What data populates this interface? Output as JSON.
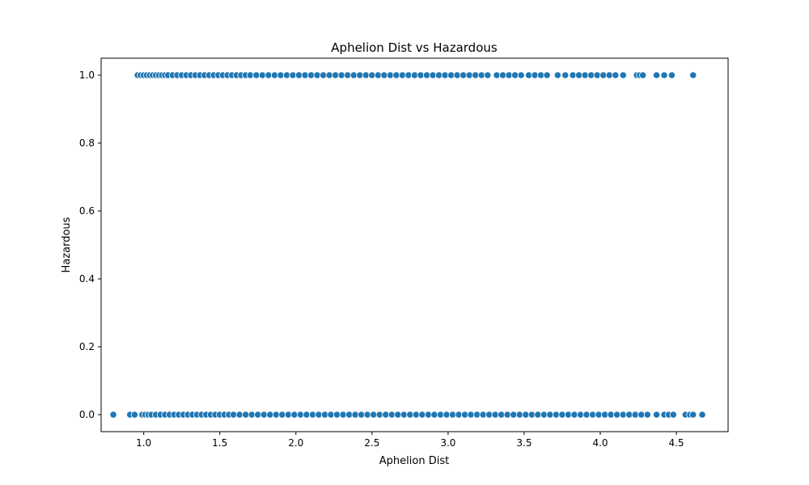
{
  "chart_data": {
    "type": "scatter",
    "title": "Aphelion Dist vs Hazardous",
    "xlabel": "Aphelion Dist",
    "ylabel": "Hazardous",
    "xlim": [
      0.72,
      4.84
    ],
    "ylim": [
      -0.05,
      1.05
    ],
    "xticks": [
      {
        "value": 1.0,
        "label": "1.0"
      },
      {
        "value": 1.5,
        "label": "1.5"
      },
      {
        "value": 2.0,
        "label": "2.0"
      },
      {
        "value": 2.5,
        "label": "2.5"
      },
      {
        "value": 3.0,
        "label": "3.0"
      },
      {
        "value": 3.5,
        "label": "3.5"
      },
      {
        "value": 4.0,
        "label": "4.0"
      },
      {
        "value": 4.5,
        "label": "4.5"
      }
    ],
    "yticks": [
      {
        "value": 0.0,
        "label": "0.0"
      },
      {
        "value": 0.2,
        "label": "0.2"
      },
      {
        "value": 0.4,
        "label": "0.4"
      },
      {
        "value": 0.6,
        "label": "0.6"
      },
      {
        "value": 0.8,
        "label": "0.8"
      },
      {
        "value": 1.0,
        "label": "1.0"
      }
    ],
    "grid": false,
    "marker_color": "#1f77b4",
    "series": [
      {
        "y": 1,
        "x": [
          0.96,
          0.98,
          1.0,
          1.02,
          1.04,
          1.06,
          1.08,
          1.1,
          1.12,
          1.14,
          1.16,
          1.19,
          1.22,
          1.25,
          1.28,
          1.31,
          1.34,
          1.37,
          1.4,
          1.43,
          1.46,
          1.49,
          1.52,
          1.55,
          1.58,
          1.61,
          1.64,
          1.67,
          1.7,
          1.74,
          1.78,
          1.82,
          1.86,
          1.9,
          1.94,
          1.98,
          2.02,
          2.06,
          2.1,
          2.14,
          2.18,
          2.22,
          2.26,
          2.3,
          2.34,
          2.38,
          2.42,
          2.46,
          2.5,
          2.54,
          2.58,
          2.62,
          2.66,
          2.7,
          2.74,
          2.78,
          2.82,
          2.86,
          2.9,
          2.94,
          2.98,
          3.02,
          3.06,
          3.1,
          3.14,
          3.18,
          3.22,
          3.26,
          3.32,
          3.36,
          3.4,
          3.44,
          3.48,
          3.53,
          3.57,
          3.61,
          3.65,
          3.72,
          3.77,
          3.82,
          3.86,
          3.9,
          3.94,
          3.98,
          4.02,
          4.06,
          4.1,
          4.15,
          4.24,
          4.26,
          4.28,
          4.37,
          4.42,
          4.47,
          4.61
        ]
      },
      {
        "y": 0,
        "x": [
          0.8,
          0.91,
          0.94,
          0.99,
          1.01,
          1.03,
          1.05,
          1.08,
          1.11,
          1.14,
          1.17,
          1.2,
          1.23,
          1.26,
          1.29,
          1.32,
          1.35,
          1.38,
          1.41,
          1.44,
          1.47,
          1.5,
          1.53,
          1.56,
          1.59,
          1.63,
          1.67,
          1.71,
          1.75,
          1.79,
          1.83,
          1.87,
          1.91,
          1.95,
          1.99,
          2.03,
          2.07,
          2.11,
          2.15,
          2.19,
          2.23,
          2.27,
          2.31,
          2.35,
          2.39,
          2.43,
          2.47,
          2.51,
          2.55,
          2.59,
          2.63,
          2.67,
          2.71,
          2.75,
          2.79,
          2.83,
          2.87,
          2.91,
          2.95,
          2.99,
          3.03,
          3.07,
          3.11,
          3.15,
          3.19,
          3.23,
          3.27,
          3.31,
          3.35,
          3.39,
          3.43,
          3.47,
          3.51,
          3.55,
          3.59,
          3.63,
          3.67,
          3.71,
          3.75,
          3.79,
          3.83,
          3.87,
          3.91,
          3.95,
          3.99,
          4.03,
          4.07,
          4.11,
          4.15,
          4.19,
          4.23,
          4.27,
          4.31,
          4.37,
          4.42,
          4.45,
          4.48,
          4.56,
          4.59,
          4.61,
          4.67
        ]
      }
    ]
  }
}
